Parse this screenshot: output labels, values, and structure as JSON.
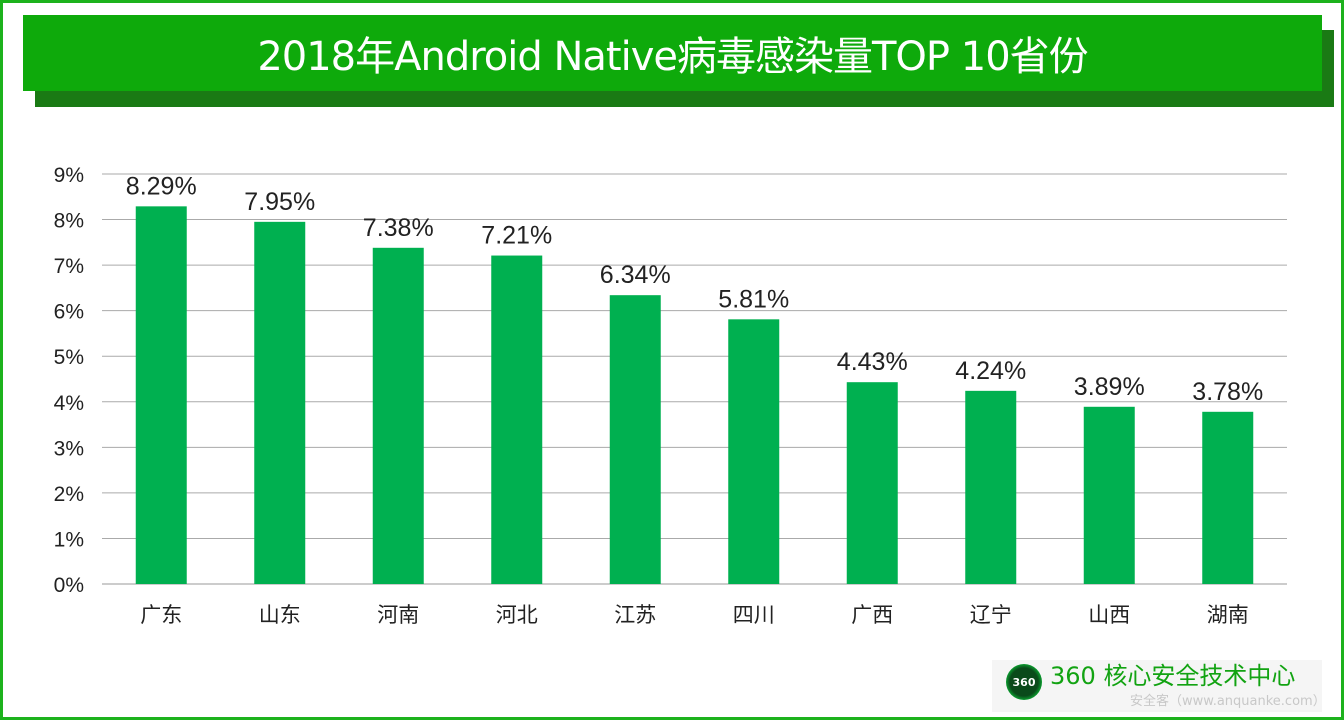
{
  "title": "2018年Android Native病毒感染量TOP 10省份",
  "chart_data": {
    "type": "bar",
    "categories": [
      "广东",
      "山东",
      "河南",
      "河北",
      "江苏",
      "四川",
      "广西",
      "辽宁",
      "山西",
      "湖南"
    ],
    "values": [
      8.29,
      7.95,
      7.38,
      7.21,
      6.34,
      5.81,
      4.43,
      4.24,
      3.89,
      3.78
    ],
    "data_labels": [
      "8.29%",
      "7.95%",
      "7.38%",
      "7.21%",
      "6.34%",
      "5.81%",
      "4.43%",
      "4.24%",
      "3.89%",
      "3.78%"
    ],
    "yticks": [
      "0%",
      "1%",
      "2%",
      "3%",
      "4%",
      "5%",
      "6%",
      "7%",
      "8%",
      "9%"
    ],
    "ylim": [
      0,
      9
    ],
    "grid": true,
    "bar_color": "#00b050",
    "xlabel": "",
    "ylabel": ""
  },
  "footer": {
    "logo_text": "360",
    "brand": "360 核心安全技术中心",
    "watermark": "安全客（www.anquanke.com）"
  },
  "colors": {
    "banner": "#0eaa0b",
    "banner_shadow": "#1a7a14",
    "border": "#1db21d"
  }
}
